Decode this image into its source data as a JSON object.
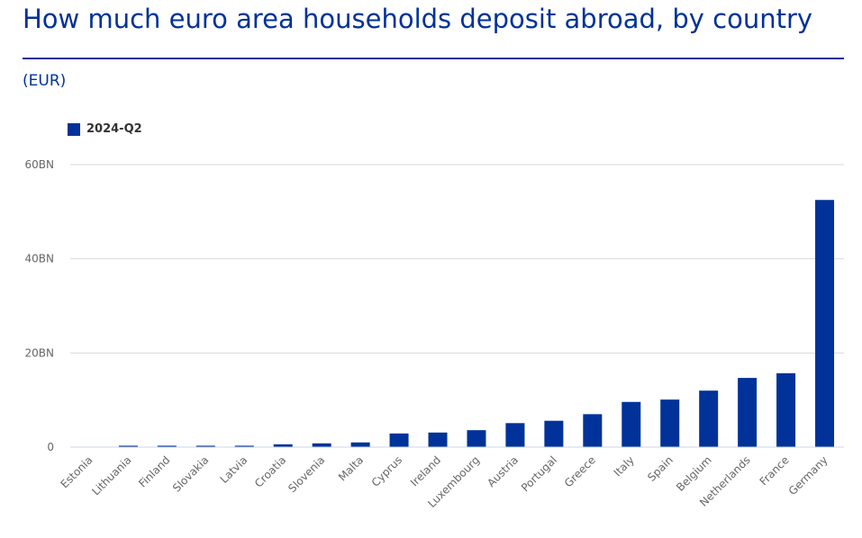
{
  "header": {
    "title": "How much euro area households deposit abroad, by country",
    "unit": "(EUR)"
  },
  "colors": {
    "accent": "#003299",
    "bar": "#003299",
    "grid": "#d9d9d9",
    "axis_text": "#666666"
  },
  "legend": {
    "label": "2024-Q2"
  },
  "chart_data": {
    "type": "bar",
    "title": "How much euro area households deposit abroad, by country",
    "subtitle": "(EUR)",
    "categories": [
      "Estonia",
      "Lithuania",
      "Finland",
      "Slovakia",
      "Latvia",
      "Croatia",
      "Slovenia",
      "Malta",
      "Cyprus",
      "Ireland",
      "Luxembourg",
      "Austria",
      "Portugal",
      "Greece",
      "Italy",
      "Spain",
      "Belgium",
      "Netherlands",
      "France",
      "Germany"
    ],
    "series": [
      {
        "name": "2024-Q2",
        "values": [
          0.05,
          0.3,
          0.3,
          0.3,
          0.3,
          0.6,
          0.8,
          1.0,
          2.9,
          3.1,
          3.6,
          5.1,
          5.6,
          7.0,
          9.6,
          10.1,
          12.0,
          14.7,
          15.7,
          52.5
        ]
      }
    ],
    "yticks": [
      0,
      20,
      40,
      60
    ],
    "ytick_labels": [
      "0",
      "20BN",
      "40BN",
      "60BN"
    ],
    "ylim": [
      0,
      60
    ],
    "grid": true,
    "legend_position": "top-left"
  }
}
